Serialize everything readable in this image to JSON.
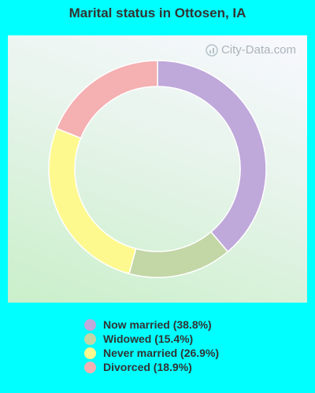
{
  "chart_data": {
    "type": "pie",
    "style": "donut",
    "title": "Marital status in Ottosen, IA",
    "categories": [
      "Now married",
      "Widowed",
      "Never married",
      "Divorced"
    ],
    "values": [
      38.8,
      15.4,
      26.9,
      18.9
    ],
    "legend_labels": [
      "Now married (38.8%)",
      "Widowed (15.4%)",
      "Never married (26.9%)",
      "Divorced (18.9%)"
    ],
    "colors": [
      "#bfa8da",
      "#c3d6a6",
      "#fdf98f",
      "#f5b0b2"
    ],
    "legend_position": "bottom"
  },
  "watermark": "City-Data.com"
}
